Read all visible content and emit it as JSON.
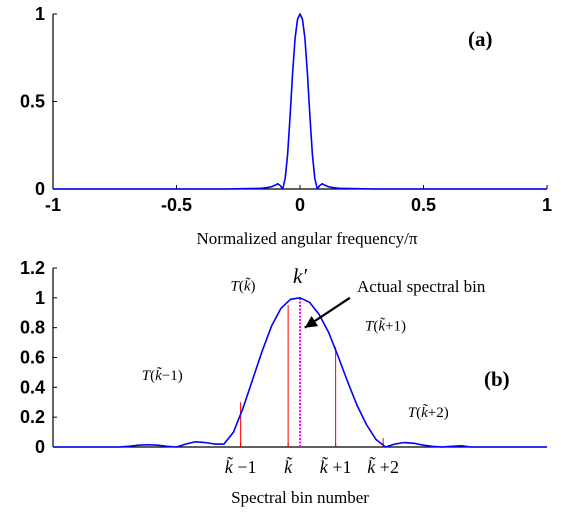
{
  "colors": {
    "curve": "#0000ff",
    "sample_line": "#ff0000",
    "actual_line": "#ff00ff",
    "axis": "#000000"
  },
  "chart_data": [
    {
      "type": "line",
      "panel_label": "(a)",
      "xlabel": "Normalized angular frequency/π",
      "ylabel": "",
      "xlim": [
        -1,
        1
      ],
      "ylim": [
        0,
        1
      ],
      "xticks": [
        -1,
        -0.5,
        0,
        0.5,
        1
      ],
      "xtick_labels": [
        "-1",
        "-0.5",
        "0",
        "0.5",
        "1"
      ],
      "yticks": [
        0,
        0.5,
        1
      ],
      "ytick_labels": [
        "0",
        "0.5",
        "1"
      ],
      "grid": false,
      "series": [
        {
          "x": [
            -1,
            -0.3,
            -0.16,
            -0.14,
            -0.12,
            -0.1,
            -0.09,
            -0.08,
            -0.07,
            -0.06,
            -0.05,
            -0.04,
            -0.03,
            -0.02,
            -0.01,
            0,
            0.01,
            0.02,
            0.03,
            0.04,
            0.05,
            0.06,
            0.07,
            0.08,
            0.09,
            0.1,
            0.12,
            0.14,
            0.16,
            0.3,
            1
          ],
          "y": [
            0,
            0.0,
            0.004,
            0.007,
            0.011,
            0.022,
            0.03,
            0.02,
            0.0,
            0.06,
            0.2,
            0.42,
            0.66,
            0.86,
            0.97,
            1.0,
            0.97,
            0.86,
            0.66,
            0.42,
            0.2,
            0.06,
            0.0,
            0.02,
            0.03,
            0.022,
            0.011,
            0.007,
            0.004,
            0.0,
            0
          ]
        }
      ]
    },
    {
      "type": "line",
      "panel_label": "(b)",
      "xlabel": "Spectral bin number",
      "ylabel": "",
      "xlim": [
        -5.2,
        5.2
      ],
      "ylim": [
        0,
        1.2
      ],
      "yticks": [
        0,
        0.2,
        0.4,
        0.6,
        0.8,
        1,
        1.2
      ],
      "ytick_labels": [
        "0",
        "0.2",
        "0.4",
        "0.6",
        "0.8",
        "1",
        "1.2"
      ],
      "grid": false,
      "bin_ticks": [
        {
          "x": -1.25,
          "label_main": "k̃ ",
          "label_rest": "−1"
        },
        {
          "x": -0.25,
          "label_main": "k̃",
          "label_rest": ""
        },
        {
          "x": 0.75,
          "label_main": "k̃ ",
          "label_rest": "+1"
        },
        {
          "x": 1.75,
          "label_main": "k̃ ",
          "label_rest": "+2"
        }
      ],
      "series": [
        {
          "x": [
            -5.2,
            -3.8,
            -3.6,
            -3.4,
            -3.2,
            -3.0,
            -2.8,
            -2.6,
            -2.4,
            -2.2,
            -2.0,
            -1.8,
            -1.6,
            -1.4,
            -1.2,
            -1.0,
            -0.8,
            -0.6,
            -0.4,
            -0.2,
            0.0,
            0.2,
            0.4,
            0.6,
            0.8,
            1.0,
            1.2,
            1.4,
            1.6,
            1.8,
            2.0,
            2.2,
            2.4,
            2.6,
            2.8,
            3.0,
            3.2,
            3.4,
            3.6,
            5.2
          ],
          "y": [
            0,
            0,
            0.005,
            0.012,
            0.015,
            0.012,
            0.005,
            0,
            0.02,
            0.035,
            0.03,
            0.02,
            0.02,
            0.1,
            0.26,
            0.45,
            0.64,
            0.81,
            0.93,
            0.99,
            1.0,
            0.97,
            0.89,
            0.77,
            0.61,
            0.44,
            0.28,
            0.15,
            0.05,
            0.0,
            0.02,
            0.03,
            0.025,
            0.012,
            0.004,
            0.0,
            0.005,
            0.008,
            0.0,
            0
          ]
        }
      ],
      "sample_lines": [
        {
          "x": -1.25,
          "y": 0.3,
          "label_T": "T(",
          "label_k": "k̃",
          "label_rest": "−1)"
        },
        {
          "x": -0.25,
          "y": 0.95,
          "label_T": "T(",
          "label_k": "k̃",
          "label_rest": ")"
        },
        {
          "x": 0.75,
          "y": 0.67,
          "label_T": "T(",
          "label_k": "k̃",
          "label_rest": "+1)"
        },
        {
          "x": 1.75,
          "y": 0.06,
          "label_T": "T(",
          "label_k": "k̃",
          "label_rest": "+2)"
        }
      ],
      "actual_bin": {
        "x": 0.0,
        "y": 1.0,
        "label": "k′",
        "arrow_text": "Actual spectral bin"
      }
    }
  ]
}
